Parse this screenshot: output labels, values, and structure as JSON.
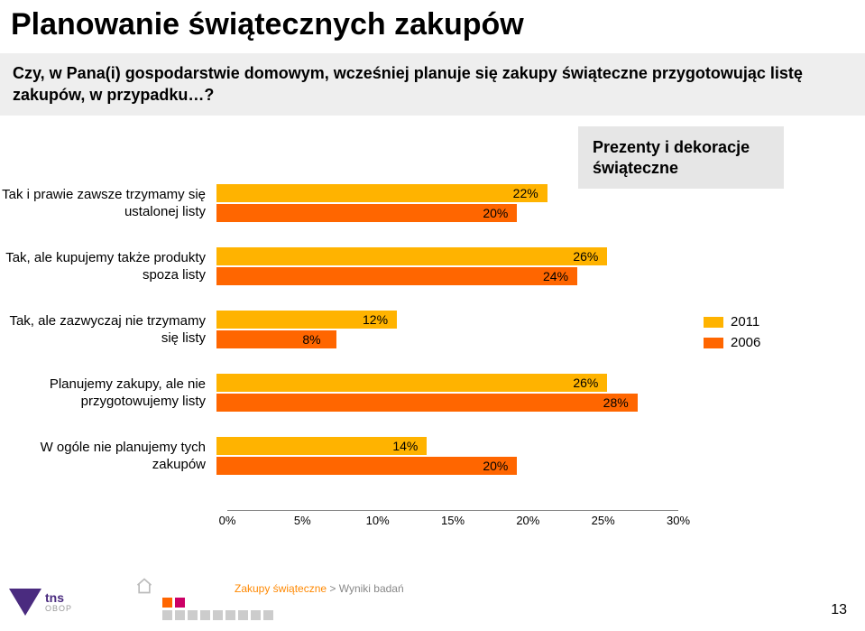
{
  "title": "Planowanie świątecznych zakupów",
  "question": "Czy, w Pana(i) gospodarstwie domowym, wcześniej planuje się zakupy świąteczne przygotowując listę zakupów, w przypadku…?",
  "subtitle": "Prezenty i dekoracje świąteczne",
  "chart": {
    "type": "bar",
    "xlim": [
      0,
      30
    ],
    "xtick_step": 5,
    "xticks": [
      "0%",
      "5%",
      "10%",
      "15%",
      "20%",
      "25%",
      "30%"
    ],
    "bar_colors": {
      "s2011": "#ffb300",
      "s2006": "#ff6600"
    },
    "background_color": "#ffffff",
    "categories": [
      {
        "label": "Tak i prawie zawsze trzymamy się ustalonej listy",
        "v2011": 22,
        "v2006": 20,
        "l2011": "22%",
        "l2006": "20%"
      },
      {
        "label": "Tak, ale kupujemy także produkty spoza listy",
        "v2011": 26,
        "v2006": 24,
        "l2011": "26%",
        "l2006": "24%"
      },
      {
        "label": "Tak, ale zazwyczaj nie trzymamy się listy",
        "v2011": 12,
        "v2006": 8,
        "l2011": "12%",
        "l2006": "8%"
      },
      {
        "label": "Planujemy zakupy, ale nie przygotowujemy listy",
        "v2011": 26,
        "v2006": 28,
        "l2011": "26%",
        "l2006": "28%"
      },
      {
        "label": "W ogóle nie planujemy tych zakupów",
        "v2011": 14,
        "v2006": 20,
        "l2011": "14%",
        "l2006": "20%"
      }
    ],
    "legend": [
      {
        "label": "2011",
        "color": "#ffb300"
      },
      {
        "label": "2006",
        "color": "#ff6600"
      }
    ]
  },
  "footer": {
    "text": "Zakupy świąteczne",
    "trail": " > Wyniki badań"
  },
  "page_number": "13",
  "logo": {
    "brand": "tns",
    "sub": "OBOP"
  }
}
